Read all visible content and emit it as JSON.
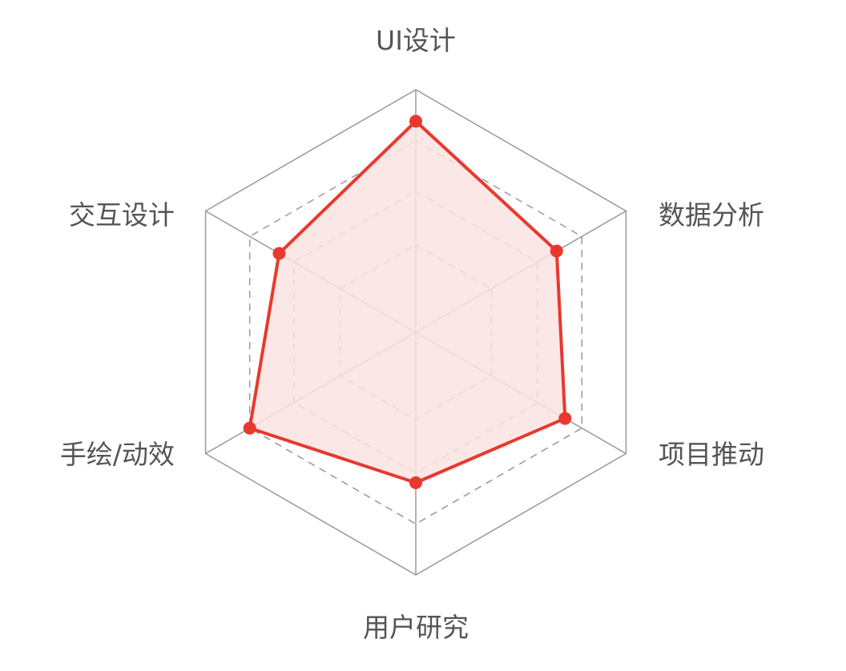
{
  "chart_data": {
    "type": "radar",
    "indicators": [
      "UI设计",
      "数据分析",
      "项目推动",
      "用户研究",
      "手绘/动效",
      "交互设计"
    ],
    "series": [
      {
        "values": [
          87,
          67,
          71,
          62,
          79,
          65
        ]
      }
    ],
    "max": 100,
    "split_levels": [
      36,
      58,
      79,
      100
    ],
    "colors": {
      "line": "#e8392f",
      "area": "#fae3e2",
      "grid": "#999999",
      "label": "#555555"
    }
  }
}
